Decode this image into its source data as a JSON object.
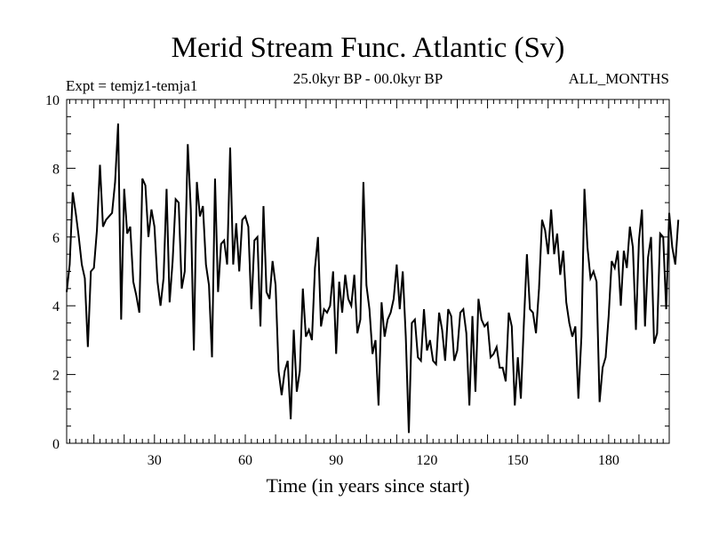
{
  "chart_data": {
    "type": "line",
    "title": "Merid Stream Func. Atlantic (Sv)",
    "subtitle_left": "Expt = temjz1-temja1",
    "subtitle_center": "25.0kyr BP - 00.0kyr BP",
    "subtitle_right": "ALL_MONTHS",
    "xlabel": "Time (in years since start)",
    "ylabel": "",
    "xlim": [
      1,
      200
    ],
    "ylim": [
      0,
      10
    ],
    "x_ticks": [
      30,
      60,
      90,
      120,
      150,
      180
    ],
    "y_ticks": [
      0,
      2,
      4,
      6,
      8,
      10
    ],
    "series": [
      {
        "name": "Merid Stream Func. Atlantic",
        "x_start": 1,
        "x_step": 1,
        "values": [
          4.4,
          5.2,
          7.3,
          6.7,
          6.0,
          5.2,
          4.8,
          2.8,
          5.0,
          5.1,
          6.2,
          8.1,
          6.3,
          6.5,
          6.6,
          6.7,
          7.6,
          9.3,
          3.6,
          7.4,
          6.1,
          6.3,
          4.7,
          4.3,
          3.8,
          7.7,
          7.5,
          6.0,
          6.8,
          6.3,
          4.7,
          4.0,
          4.8,
          7.4,
          4.1,
          5.3,
          7.1,
          7.0,
          4.5,
          5.0,
          8.7,
          6.8,
          2.7,
          7.6,
          6.6,
          6.9,
          5.2,
          4.6,
          2.5,
          7.7,
          4.4,
          5.8,
          5.9,
          5.2,
          8.6,
          5.2,
          6.4,
          5.0,
          6.5,
          6.6,
          6.3,
          3.9,
          5.9,
          6.0,
          3.4,
          6.9,
          4.4,
          4.2,
          5.3,
          4.6,
          2.1,
          1.4,
          2.1,
          2.4,
          0.7,
          3.3,
          1.5,
          2.1,
          4.5,
          3.1,
          3.3,
          3.0,
          5.1,
          6.0,
          3.4,
          3.9,
          3.8,
          4.0,
          5.0,
          2.6,
          4.7,
          3.8,
          4.9,
          4.2,
          4.0,
          4.9,
          3.2,
          3.6,
          7.6,
          4.6,
          3.9,
          2.6,
          3.0,
          1.1,
          4.1,
          3.1,
          3.6,
          3.8,
          4.2,
          5.2,
          3.9,
          5.0,
          3.1,
          0.3,
          3.5,
          3.6,
          2.5,
          2.4,
          3.9,
          2.7,
          3.0,
          2.4,
          2.3,
          3.8,
          3.3,
          2.4,
          3.9,
          3.7,
          2.4,
          2.7,
          3.8,
          3.9,
          3.2,
          1.1,
          3.7,
          1.5,
          4.2,
          3.6,
          3.4,
          3.5,
          2.5,
          2.6,
          2.8,
          2.2,
          2.2,
          1.8,
          3.8,
          3.4,
          1.1,
          2.5,
          1.3,
          3.5,
          5.5,
          3.9,
          3.8,
          3.2,
          4.5,
          6.5,
          6.2,
          5.5,
          6.8,
          5.5,
          6.1,
          4.9,
          5.6,
          4.1,
          3.5,
          3.1,
          3.4,
          1.3,
          3.1,
          7.4,
          5.7,
          4.8,
          5.0,
          4.7,
          1.2,
          2.2,
          2.5,
          3.7,
          5.3,
          5.1,
          5.6,
          4.0,
          5.6,
          5.1,
          6.3,
          5.7,
          3.3,
          5.9,
          6.8,
          3.4,
          5.4,
          6.0,
          2.9,
          3.2,
          6.1,
          6.0,
          3.9,
          6.7,
          5.7,
          5.2,
          6.5
        ]
      }
    ]
  }
}
